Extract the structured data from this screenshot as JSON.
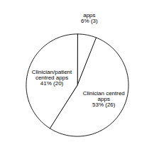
{
  "chart_data": {
    "type": "pie",
    "categories": [
      "apps\n6% (3)",
      "Clinician centred\napps\n53% (26)",
      "Clinician/patient\ncentred apps\n41% (20)"
    ],
    "values": [
      6,
      53,
      41
    ],
    "colors": [
      "#ffffff",
      "#ffffff",
      "#ffffff"
    ]
  }
}
